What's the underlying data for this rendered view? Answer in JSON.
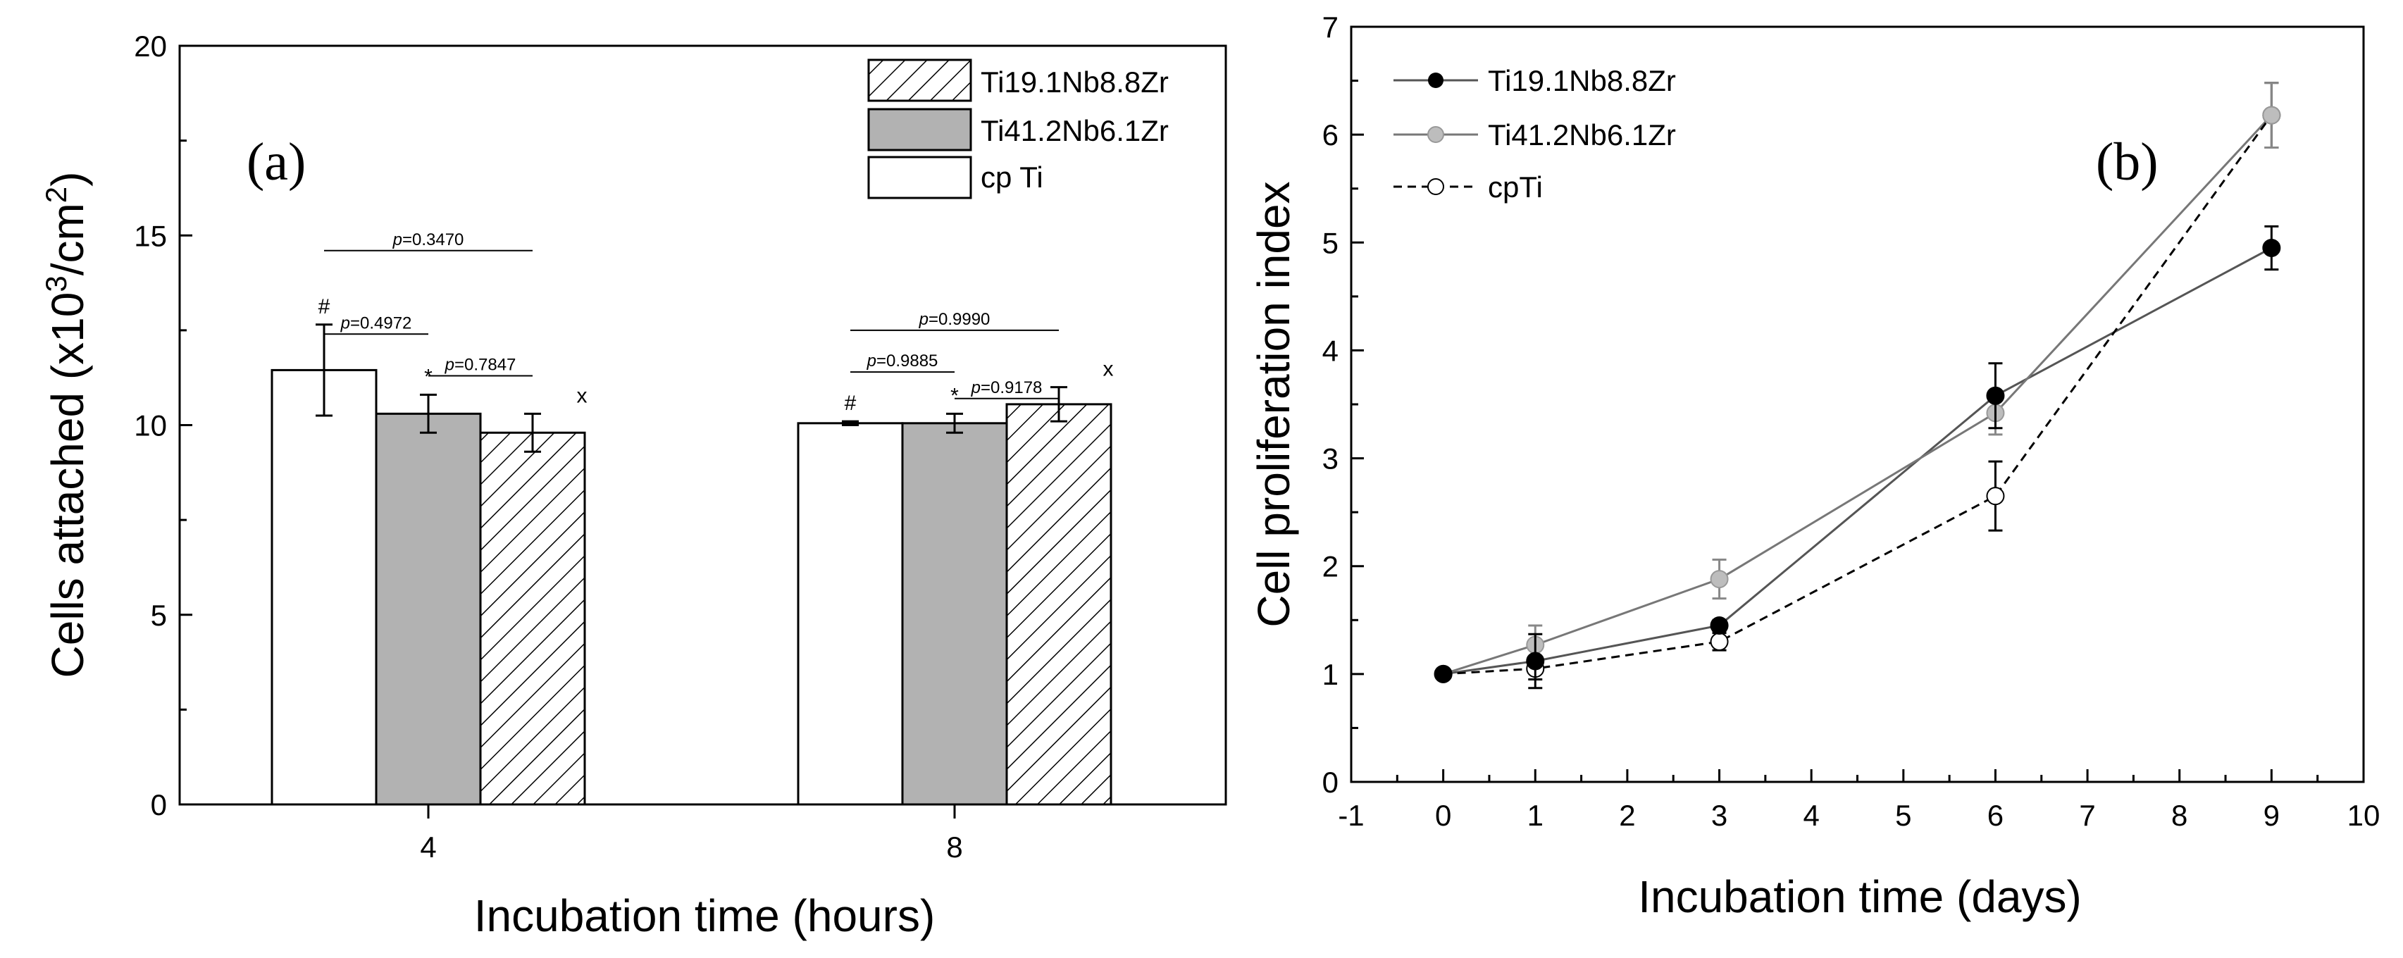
{
  "colors": {
    "white": "#ffffff",
    "gray": "#b2b2b2",
    "light_gray": "#bdbdbd",
    "black": "#000000"
  },
  "chart_data": [
    {
      "panel": "(a)",
      "type": "bar",
      "categories": [
        "4",
        "8"
      ],
      "xlabel": "Incubation time (hours)",
      "ylabel_main": "Cells attached (x10",
      "ylabel_sup1": "3",
      "ylabel_mid": "/cm",
      "ylabel_sup2": "2",
      "ylabel_end": ")",
      "ylim": [
        0,
        20
      ],
      "yticks": [
        "0",
        "5",
        "10",
        "15",
        "20"
      ],
      "legend_position": "top-right",
      "series": [
        {
          "name": "cp Ti",
          "fill": "white",
          "values": [
            11.45,
            10.05
          ],
          "errors": [
            1.2,
            0.05
          ],
          "markers": [
            "#",
            "#"
          ]
        },
        {
          "name": "Ti41.2Nb6.1Zr",
          "fill": "gray",
          "values": [
            10.3,
            10.05
          ],
          "errors": [
            0.5,
            0.25
          ],
          "markers": [
            "*",
            "*"
          ]
        },
        {
          "name": "Ti19.1Nb8.8Zr",
          "fill": "hatch",
          "values": [
            9.8,
            10.55
          ],
          "errors": [
            0.5,
            0.45
          ],
          "markers": [
            "x",
            "x"
          ]
        }
      ],
      "legend_order": [
        "Ti19.1Nb8.8Zr",
        "Ti41.2Nb6.1Zr",
        "cp Ti"
      ],
      "p_annotations": [
        {
          "text": "=0.3470",
          "group": 0,
          "from": 0,
          "to": 2,
          "y": 14.6
        },
        {
          "text": "=0.4972",
          "group": 0,
          "from": 0,
          "to": 1,
          "y": 12.4
        },
        {
          "text": "=0.7847",
          "group": 0,
          "from": 1,
          "to": 2,
          "y": 11.3
        },
        {
          "text": "=0.9990",
          "group": 1,
          "from": 0,
          "to": 2,
          "y": 12.5
        },
        {
          "text": "=0.9885",
          "group": 1,
          "from": 0,
          "to": 1,
          "y": 11.4
        },
        {
          "text": "=0.9178",
          "group": 1,
          "from": 1,
          "to": 2,
          "y": 10.7
        }
      ],
      "p_prefix": "p"
    },
    {
      "panel": "(b)",
      "type": "line",
      "xlabel": "Incubation time (days)",
      "ylabel": "Cell proliferation index",
      "xlim": [
        -1,
        10
      ],
      "ylim": [
        0,
        7
      ],
      "xticks": [
        "-1",
        "0",
        "1",
        "2",
        "3",
        "4",
        "5",
        "6",
        "7",
        "8",
        "9",
        "10"
      ],
      "yticks": [
        "0",
        "1",
        "2",
        "3",
        "4",
        "5",
        "6",
        "7"
      ],
      "legend_position": "top-left",
      "series": [
        {
          "name": "Ti19.1Nb8.8Zr",
          "style": "solid-black",
          "x": [
            0,
            1,
            3,
            6,
            9
          ],
          "y": [
            1.0,
            1.12,
            1.45,
            3.58,
            4.95
          ],
          "errors": [
            0,
            0.25,
            0.05,
            0.3,
            0.2
          ]
        },
        {
          "name": "Ti41.2Nb6.1Zr",
          "style": "solid-gray",
          "x": [
            0,
            1,
            3,
            6,
            9
          ],
          "y": [
            1.0,
            1.27,
            1.88,
            3.42,
            6.18
          ],
          "errors": [
            0,
            0.18,
            0.18,
            0.2,
            0.3
          ]
        },
        {
          "name": "cpTi",
          "style": "dashed-open",
          "x": [
            0,
            1,
            3,
            6,
            9
          ],
          "y": [
            1.0,
            1.05,
            1.3,
            2.65,
            6.18
          ],
          "errors": [
            0,
            0.1,
            0.08,
            0.32,
            0.3
          ]
        }
      ]
    }
  ]
}
